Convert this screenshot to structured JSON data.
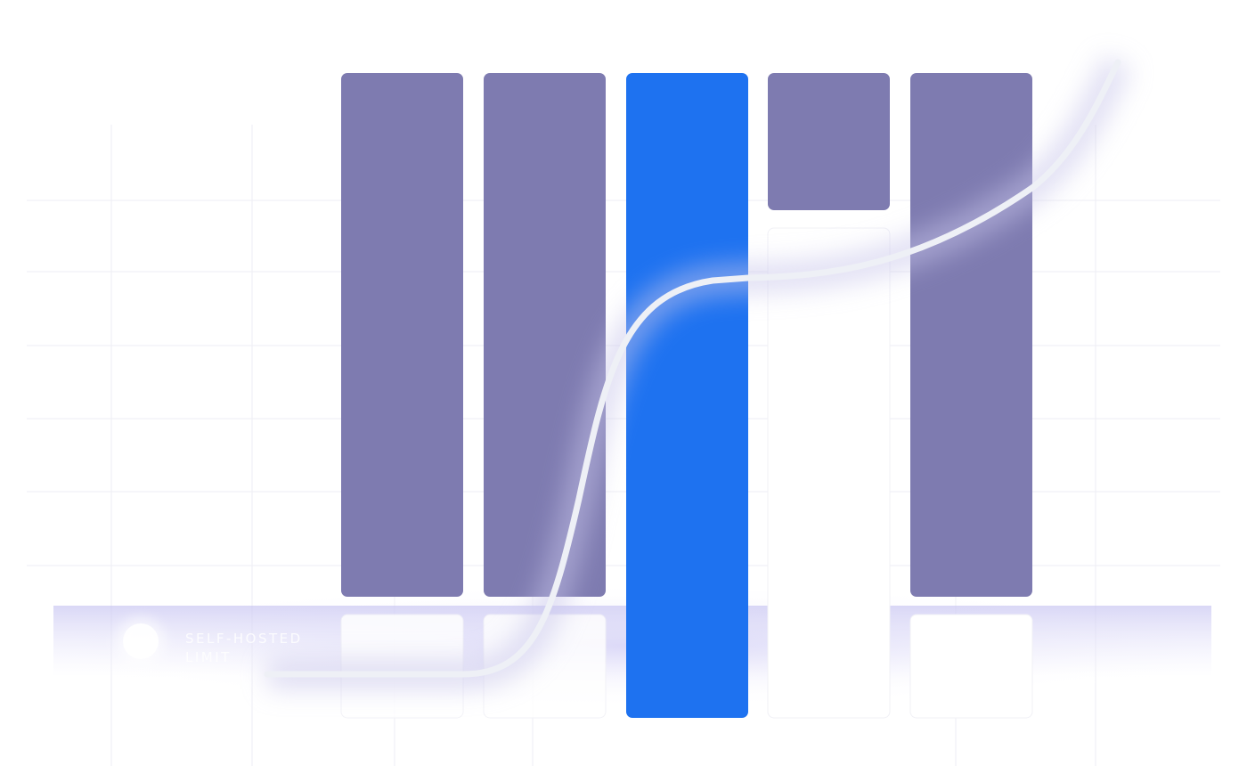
{
  "limit_badge": {
    "lines": [
      "SELF-HOSTED",
      "LIMIT"
    ]
  }
}
